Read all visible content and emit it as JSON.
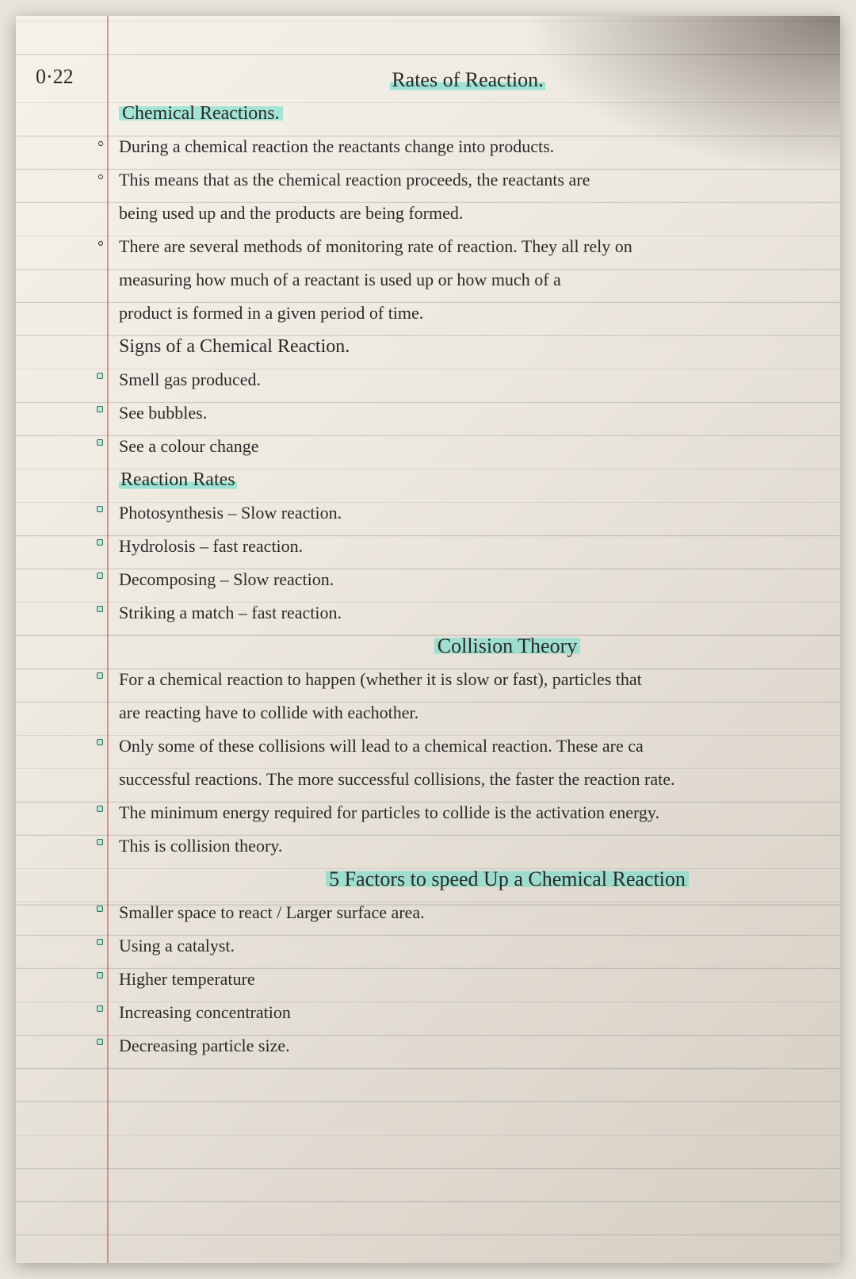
{
  "page": {
    "date": "0·22",
    "title": "Rates of Reaction.",
    "background_color": "#ede8de",
    "line_color": "rgba(100,100,120,0.25)",
    "margin_color": "rgba(200,60,60,0.5)",
    "highlight_color": "rgba(100,220,200,0.55)",
    "text_color": "#2a2a2a",
    "font_family": "cursive",
    "base_fontsize": 22,
    "line_height": 42
  },
  "sections": {
    "chem_reactions": {
      "heading": "Chemical Reactions.",
      "bullets": [
        "During a chemical reaction the reactants change into products.",
        "This means that as the chemical reaction proceeds, the reactants are",
        "being used up and the products are being formed.",
        "There are several methods of monitoring rate of reaction. They all rely on",
        "measuring how much of a reactant is used up or how much of a",
        "product is formed in a given period of time."
      ]
    },
    "signs": {
      "heading": "Signs of a Chemical Reaction.",
      "bullets": [
        "Smell gas produced.",
        "See bubbles.",
        "See a colour change"
      ]
    },
    "rates": {
      "heading": "Reaction Rates",
      "bullets": [
        "Photosynthesis – Slow reaction.",
        "Hydrolosis   – fast reaction.",
        "Decomposing – Slow reaction.",
        "Striking a match – fast reaction."
      ]
    },
    "collision": {
      "heading": "Collision Theory",
      "bullets": [
        "For a chemical reaction to happen (whether it is slow or fast), particles that",
        "are reacting have to collide with eachother.",
        "Only some of these collisions will lead to a chemical reaction. These are ca",
        "successful reactions. The more successful collisions, the faster the reaction rate.",
        "The minimum energy required for particles to collide is the activation energy.",
        "This is collision theory."
      ]
    },
    "factors": {
      "heading": "5 Factors to speed Up a Chemical Reaction",
      "bullets": [
        "Smaller space to react / Larger surface area.",
        "Using a catalyst.",
        "Higher temperature",
        "Increasing concentration",
        "Decreasing particle size."
      ]
    }
  }
}
